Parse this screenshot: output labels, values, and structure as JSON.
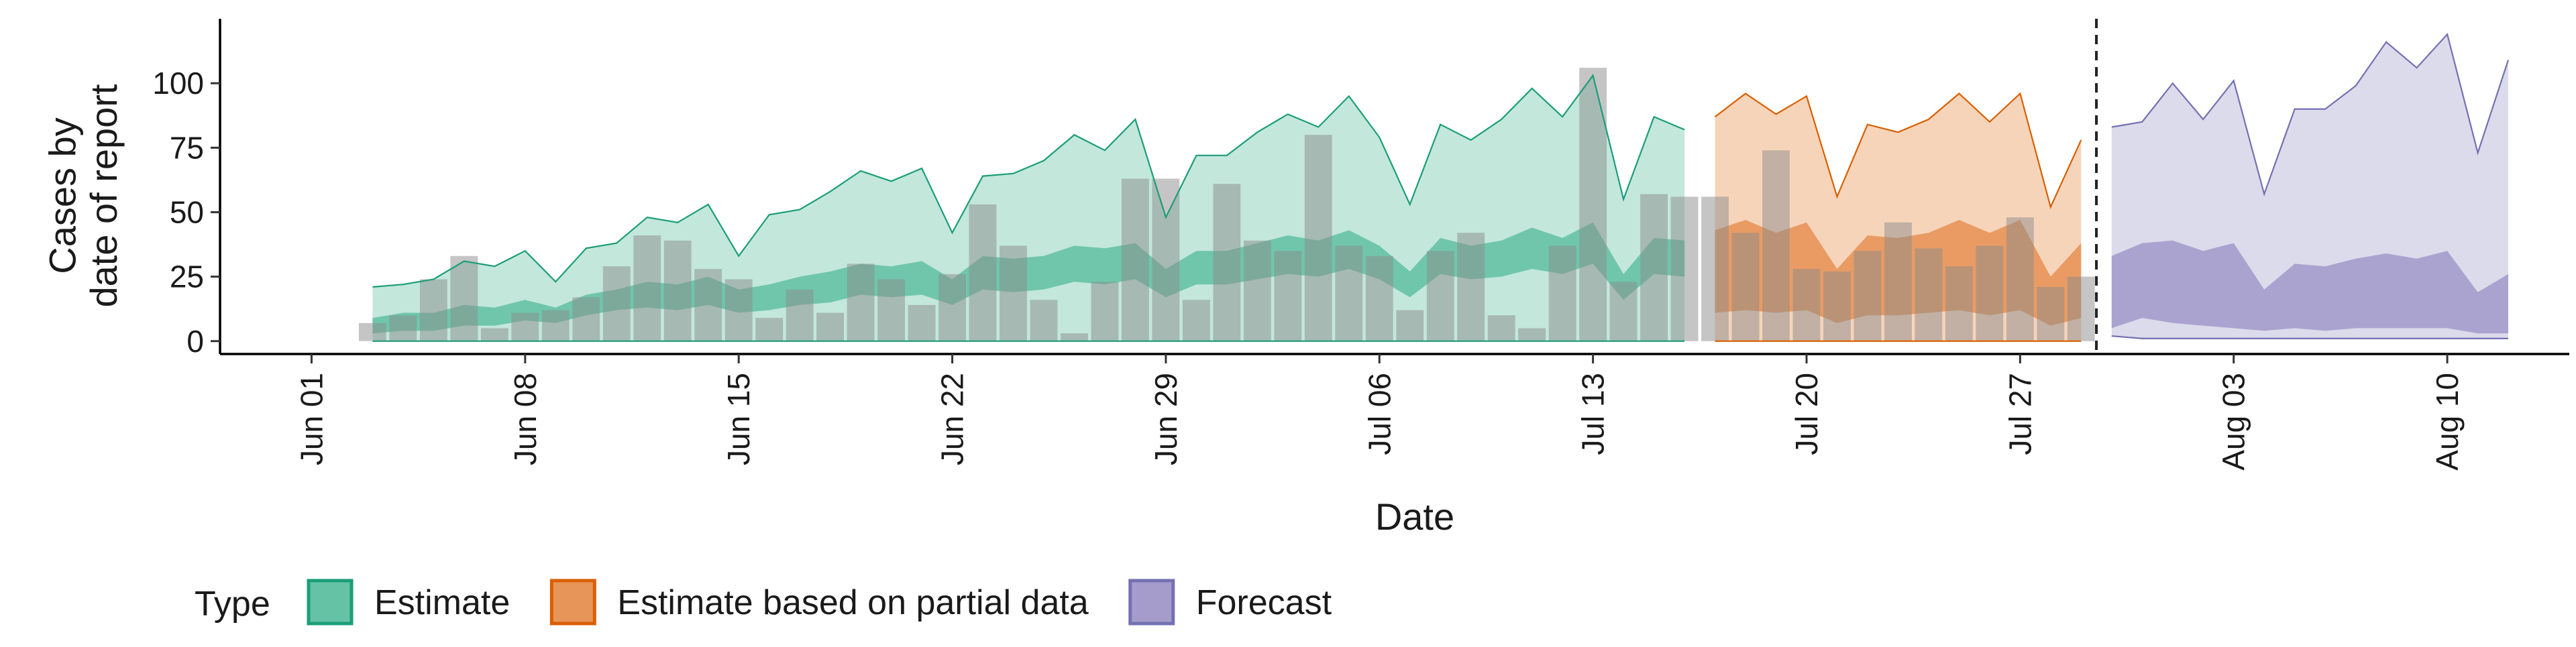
{
  "chart_data": {
    "type": "area",
    "xlabel": "Date",
    "ylabel": [
      "Cases by",
      "date of report"
    ],
    "legend": {
      "title": "Type",
      "placement": "bottom-left",
      "entries": [
        {
          "label": "Estimate",
          "fill": "#66c2a5",
          "stroke": "#1b9e77"
        },
        {
          "label": "Estimate based on partial data",
          "fill": "#e8955a",
          "stroke": "#d95f02"
        },
        {
          "label": "Forecast",
          "fill": "#a59ccc",
          "stroke": "#7570b3"
        }
      ]
    },
    "colors": {
      "estimate_stroke": "#1b9e77",
      "estimate_outer": "#c3e7db",
      "estimate_inner": "#66c2a5",
      "partial_stroke": "#d95f02",
      "partial_outer": "#f6d4ba",
      "partial_inner": "#e8955a",
      "forecast_stroke": "#7570b3",
      "forecast_outer": "#dcdbeb",
      "forecast_inner": "#a59ccc",
      "bars": "#8c8c8c",
      "forecast_divider": "#222222"
    },
    "x_axis": {
      "start": "2020-06-01",
      "range": [
        "2020-05-29",
        "2020-08-14"
      ],
      "ticks": [
        {
          "date": "2020-06-01",
          "label": "Jun 01"
        },
        {
          "date": "2020-06-08",
          "label": "Jun 08"
        },
        {
          "date": "2020-06-15",
          "label": "Jun 15"
        },
        {
          "date": "2020-06-22",
          "label": "Jun 22"
        },
        {
          "date": "2020-06-29",
          "label": "Jun 29"
        },
        {
          "date": "2020-07-06",
          "label": "Jul 06"
        },
        {
          "date": "2020-07-13",
          "label": "Jul 13"
        },
        {
          "date": "2020-07-20",
          "label": "Jul 20"
        },
        {
          "date": "2020-07-27",
          "label": "Jul 27"
        },
        {
          "date": "2020-08-03",
          "label": "Aug 03"
        },
        {
          "date": "2020-08-10",
          "label": "Aug 10"
        }
      ]
    },
    "y_axis": {
      "range": [
        -5,
        125
      ],
      "ticks": [
        0,
        25,
        50,
        75,
        100
      ]
    },
    "forecast_divider_date": "2020-07-29",
    "bars": {
      "dates": [
        "2020-06-03",
        "2020-06-04",
        "2020-06-05",
        "2020-06-06",
        "2020-06-07",
        "2020-06-08",
        "2020-06-09",
        "2020-06-10",
        "2020-06-11",
        "2020-06-12",
        "2020-06-13",
        "2020-06-14",
        "2020-06-15",
        "2020-06-16",
        "2020-06-17",
        "2020-06-18",
        "2020-06-19",
        "2020-06-20",
        "2020-06-21",
        "2020-06-22",
        "2020-06-23",
        "2020-06-24",
        "2020-06-25",
        "2020-06-26",
        "2020-06-27",
        "2020-06-28",
        "2020-06-29",
        "2020-06-30",
        "2020-07-01",
        "2020-07-02",
        "2020-07-03",
        "2020-07-04",
        "2020-07-05",
        "2020-07-06",
        "2020-07-07",
        "2020-07-08",
        "2020-07-09",
        "2020-07-10",
        "2020-07-11",
        "2020-07-12",
        "2020-07-13",
        "2020-07-14",
        "2020-07-15",
        "2020-07-16",
        "2020-07-17",
        "2020-07-18",
        "2020-07-19",
        "2020-07-20",
        "2020-07-21",
        "2020-07-22",
        "2020-07-23",
        "2020-07-24",
        "2020-07-25",
        "2020-07-26",
        "2020-07-27",
        "2020-07-28",
        "2020-07-29"
      ],
      "values": [
        7,
        10,
        24,
        33,
        5,
        11,
        12,
        17,
        29,
        41,
        39,
        28,
        24,
        9,
        20,
        11,
        30,
        24,
        14,
        26,
        53,
        37,
        16,
        3,
        23,
        63,
        63,
        16,
        61,
        39,
        35,
        80,
        37,
        33,
        12,
        35,
        42,
        10,
        5,
        37,
        106,
        23,
        57,
        56,
        56,
        42,
        74,
        28,
        27,
        35,
        46,
        36,
        29,
        37,
        48,
        21,
        25
      ]
    },
    "series": [
      {
        "name": "Estimate",
        "dates": [
          "2020-06-03",
          "2020-06-04",
          "2020-06-05",
          "2020-06-06",
          "2020-06-07",
          "2020-06-08",
          "2020-06-09",
          "2020-06-10",
          "2020-06-11",
          "2020-06-12",
          "2020-06-13",
          "2020-06-14",
          "2020-06-15",
          "2020-06-16",
          "2020-06-17",
          "2020-06-18",
          "2020-06-19",
          "2020-06-20",
          "2020-06-21",
          "2020-06-22",
          "2020-06-23",
          "2020-06-24",
          "2020-06-25",
          "2020-06-26",
          "2020-06-27",
          "2020-06-28",
          "2020-06-29",
          "2020-06-30",
          "2020-07-01",
          "2020-07-02",
          "2020-07-03",
          "2020-07-04",
          "2020-07-05",
          "2020-07-06",
          "2020-07-07",
          "2020-07-08",
          "2020-07-09",
          "2020-07-10",
          "2020-07-11",
          "2020-07-12",
          "2020-07-13",
          "2020-07-14",
          "2020-07-15",
          "2020-07-16"
        ],
        "lower_90": [
          0,
          0,
          0,
          0,
          0,
          0,
          0,
          0,
          0,
          0,
          0,
          0,
          0,
          0,
          0,
          0,
          0,
          0,
          0,
          0,
          0,
          0,
          0,
          0,
          0,
          0,
          0,
          0,
          0,
          0,
          0,
          0,
          0,
          0,
          0,
          0,
          0,
          0,
          0,
          0,
          0,
          0,
          0,
          0
        ],
        "upper_90": [
          21,
          22,
          24,
          31,
          29,
          35,
          23,
          36,
          38,
          48,
          46,
          53,
          33,
          49,
          51,
          58,
          66,
          62,
          67,
          42,
          64,
          65,
          70,
          80,
          74,
          86,
          48,
          72,
          72,
          81,
          88,
          83,
          95,
          79,
          53,
          84,
          78,
          86,
          98,
          87,
          103,
          55,
          87,
          82
        ],
        "lower_50": [
          3,
          4,
          4,
          6,
          6,
          8,
          7,
          10,
          12,
          13,
          12,
          14,
          11,
          12,
          14,
          15,
          18,
          17,
          18,
          14,
          20,
          19,
          20,
          23,
          22,
          24,
          17,
          22,
          22,
          24,
          26,
          25,
          28,
          24,
          17,
          26,
          24,
          25,
          28,
          26,
          30,
          16,
          26,
          25
        ],
        "upper_50": [
          9,
          11,
          11,
          14,
          13,
          16,
          13,
          18,
          20,
          23,
          22,
          25,
          20,
          22,
          25,
          27,
          30,
          29,
          31,
          24,
          33,
          32,
          33,
          37,
          36,
          38,
          28,
          35,
          35,
          38,
          41,
          39,
          43,
          37,
          27,
          40,
          37,
          39,
          44,
          40,
          46,
          26,
          40,
          39
        ]
      },
      {
        "name": "Estimate based on partial data",
        "dates": [
          "2020-07-17",
          "2020-07-18",
          "2020-07-19",
          "2020-07-20",
          "2020-07-21",
          "2020-07-22",
          "2020-07-23",
          "2020-07-24",
          "2020-07-25",
          "2020-07-26",
          "2020-07-27",
          "2020-07-28",
          "2020-07-29"
        ],
        "lower_90": [
          0,
          0,
          0,
          0,
          0,
          0,
          0,
          0,
          0,
          0,
          0,
          0,
          0
        ],
        "upper_90": [
          87,
          96,
          88,
          95,
          56,
          84,
          81,
          86,
          96,
          85,
          96,
          52,
          78
        ],
        "lower_50": [
          11,
          12,
          11,
          12,
          7,
          10,
          10,
          11,
          12,
          10,
          12,
          6,
          9
        ],
        "upper_50": [
          43,
          47,
          42,
          46,
          28,
          41,
          40,
          42,
          47,
          42,
          47,
          25,
          38
        ]
      },
      {
        "name": "Forecast",
        "dates": [
          "2020-07-30",
          "2020-07-31",
          "2020-08-01",
          "2020-08-02",
          "2020-08-03",
          "2020-08-04",
          "2020-08-05",
          "2020-08-06",
          "2020-08-07",
          "2020-08-08",
          "2020-08-09",
          "2020-08-10",
          "2020-08-11",
          "2020-08-12"
        ],
        "lower_90": [
          2,
          1,
          1,
          1,
          1,
          1,
          1,
          1,
          1,
          1,
          1,
          1,
          1,
          1
        ],
        "upper_90": [
          83,
          85,
          100,
          86,
          101,
          57,
          90,
          90,
          99,
          116,
          106,
          119,
          73,
          109
        ],
        "lower_50": [
          5,
          9,
          7,
          6,
          5,
          4,
          5,
          4,
          5,
          5,
          5,
          5,
          3,
          3
        ],
        "upper_50": [
          33,
          38,
          39,
          35,
          38,
          20,
          30,
          29,
          32,
          34,
          32,
          35,
          19,
          26
        ]
      }
    ]
  }
}
